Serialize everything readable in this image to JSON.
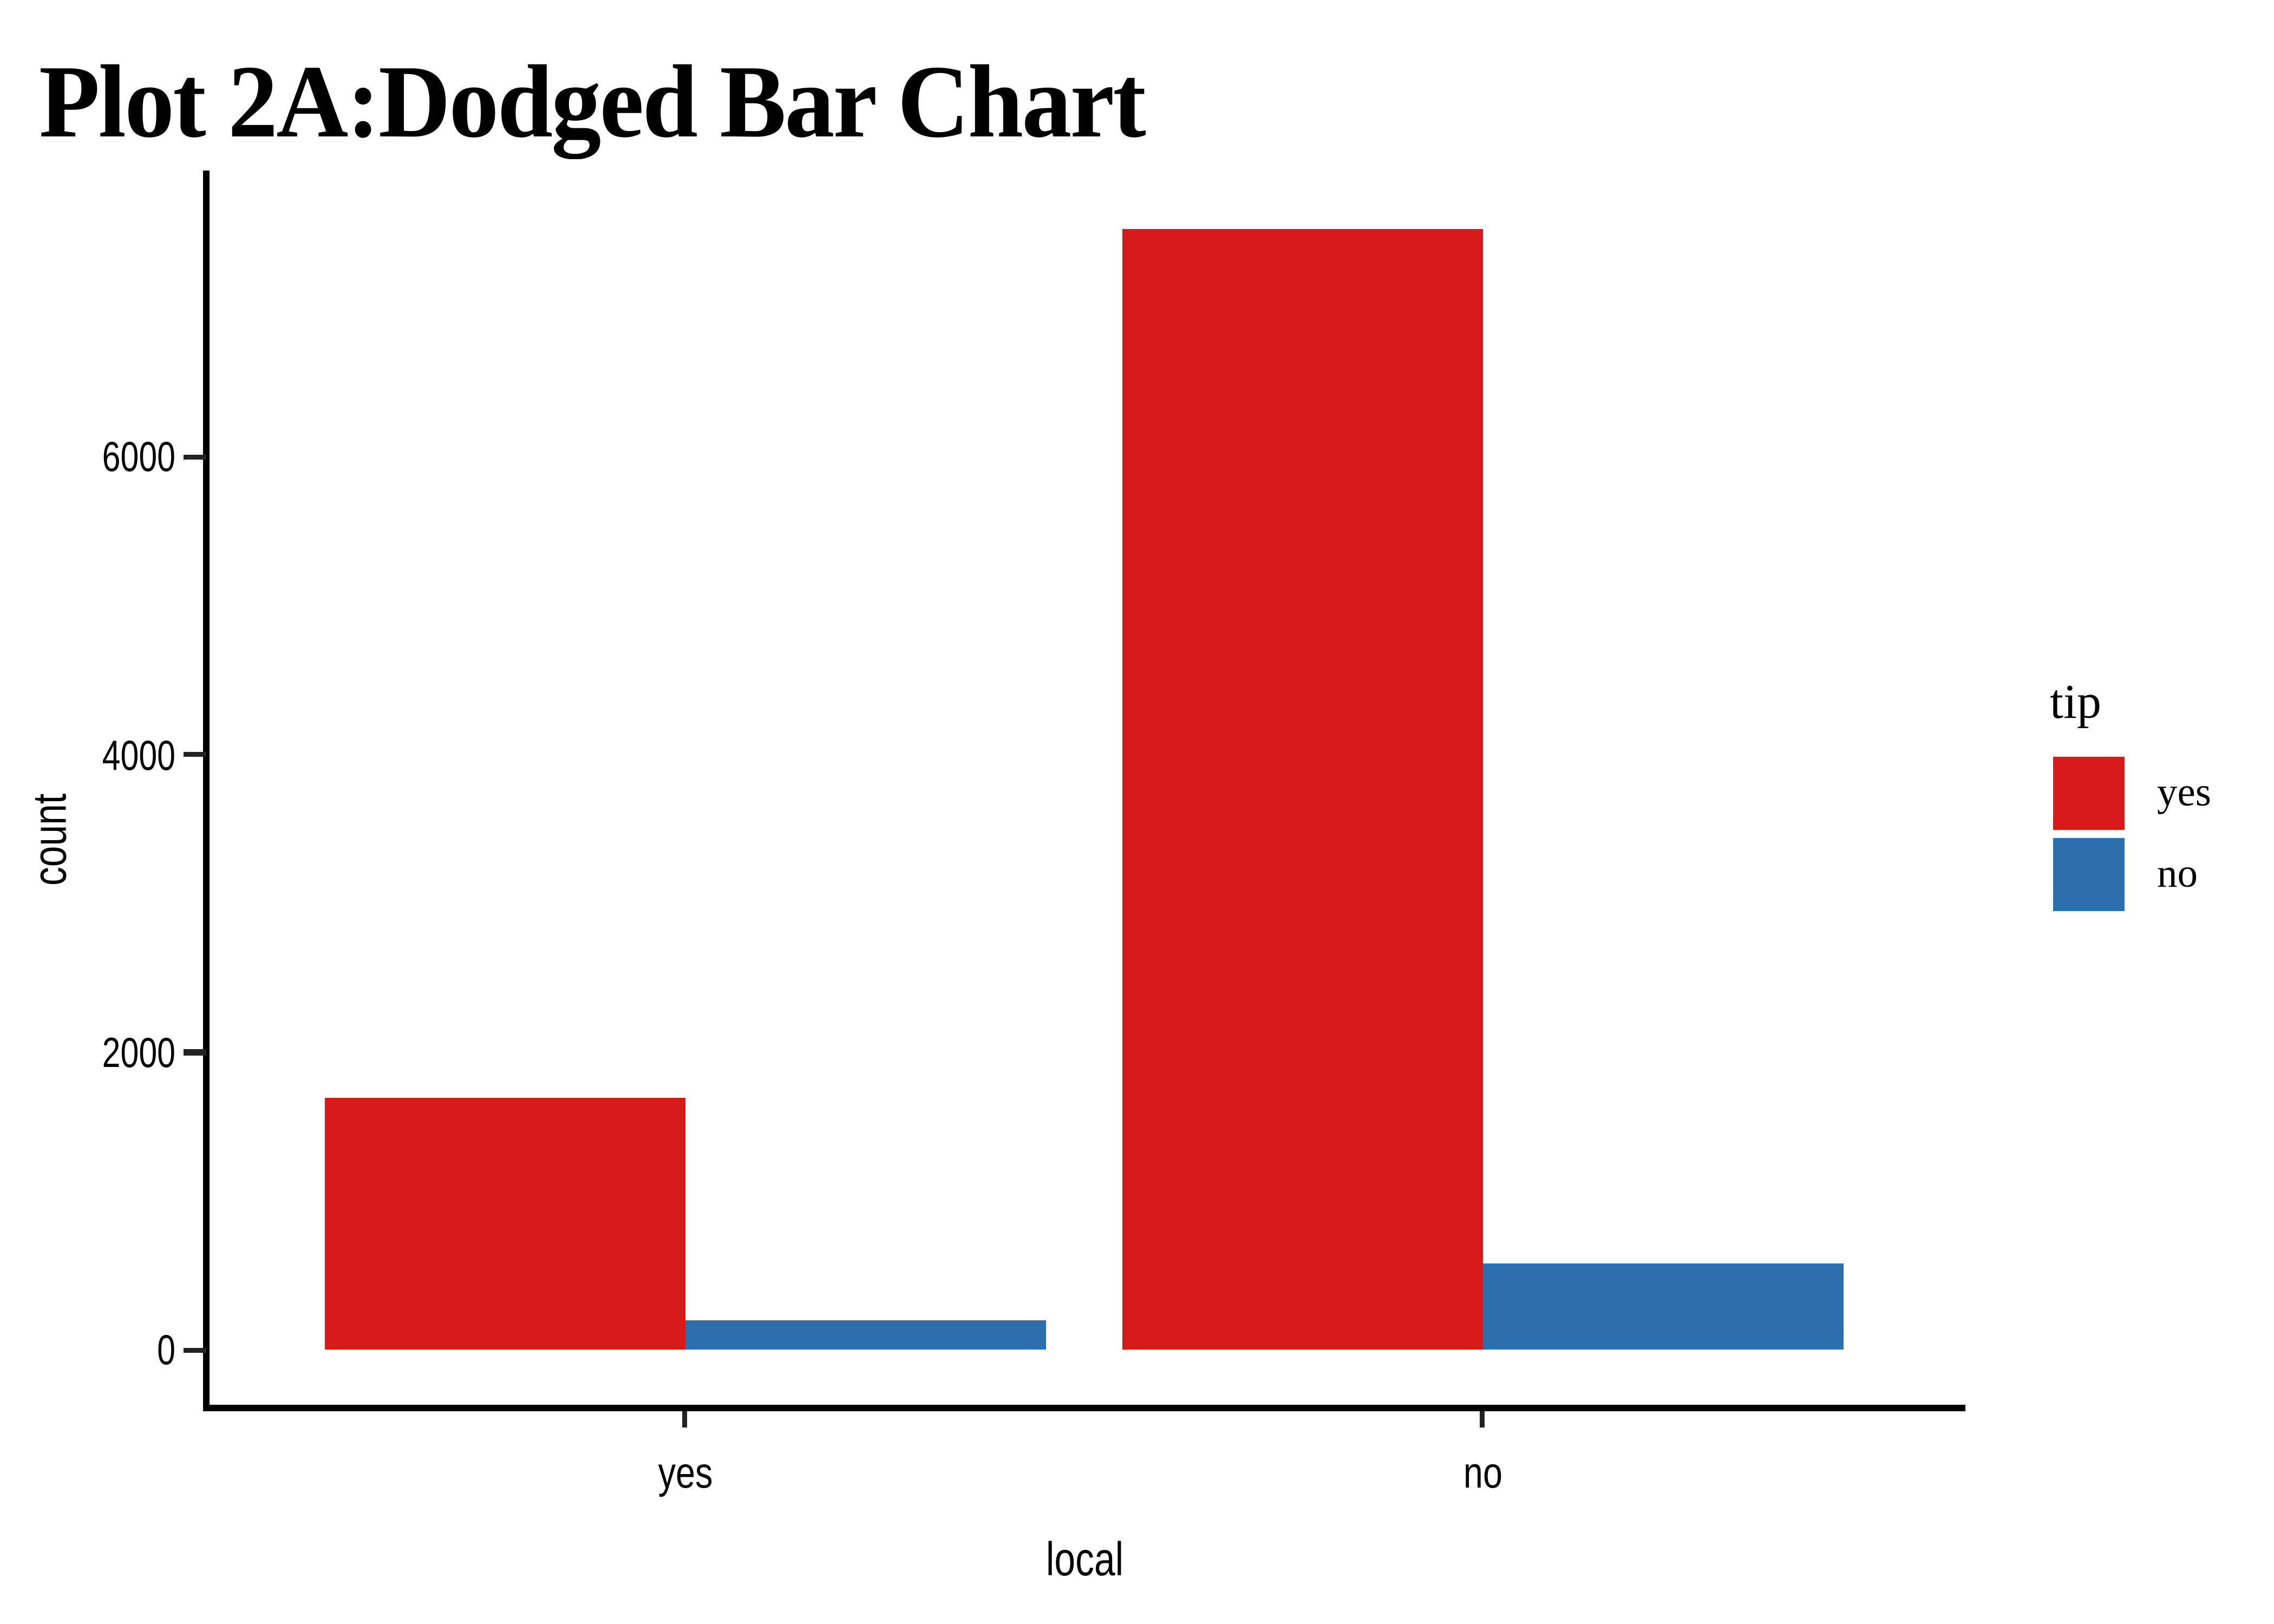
{
  "title": "Plot 2A:Dodged Bar Chart",
  "chart_data": {
    "type": "bar",
    "layout": "dodged",
    "title": "Plot 2A:Dodged Bar Chart",
    "xlabel": "local",
    "ylabel": "count",
    "categories": [
      "yes",
      "no"
    ],
    "series": [
      {
        "name": "yes",
        "color": "#d7191c",
        "values": [
          1690,
          7530
        ]
      },
      {
        "name": "no",
        "color": "#2c6fad",
        "values": [
          200,
          580
        ]
      }
    ],
    "y_ticks": [
      0,
      2000,
      4000,
      6000
    ],
    "ylim": [
      -395,
      7920
    ],
    "legend_title": "tip",
    "legend_position": "right",
    "grid": false,
    "axis_color": "#000000"
  }
}
